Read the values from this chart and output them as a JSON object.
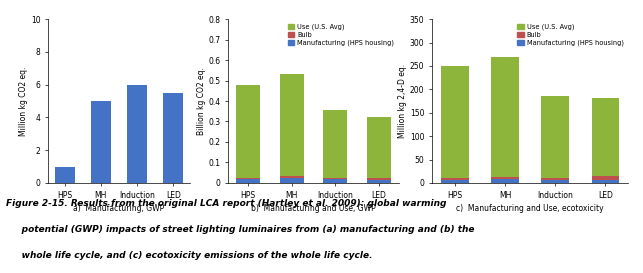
{
  "categories": [
    "HPS",
    "MH",
    "Induction",
    "LED"
  ],
  "chart_a": {
    "values": [
      1.0,
      5.0,
      6.0,
      5.5
    ],
    "color": "#4472C4",
    "ylabel": "Million kg CO2 eq.",
    "xlabel": "a)  Manufacturing, GWP",
    "ylim": [
      0,
      10
    ],
    "yticks": [
      0,
      2,
      4,
      6,
      8,
      10
    ]
  },
  "chart_b": {
    "use": [
      0.452,
      0.502,
      0.328,
      0.3
    ],
    "bulb": [
      0.008,
      0.01,
      0.008,
      0.007
    ],
    "manufacturing": [
      0.018,
      0.022,
      0.018,
      0.016
    ],
    "colors": {
      "use": "#8DB53C",
      "bulb": "#C0504D",
      "manufacturing": "#4472C4"
    },
    "ylabel": "Billion kg CO2 eq.",
    "xlabel": "b)  Manufacturing and Use, GWP",
    "ylim": [
      0,
      0.8
    ],
    "yticks": [
      0,
      0.1,
      0.2,
      0.3,
      0.4,
      0.5,
      0.6,
      0.7,
      0.8
    ],
    "legend": [
      "Use (U.S. Avg)",
      "Bulb",
      "Manufacturing (HPS housing)"
    ]
  },
  "chart_c": {
    "use": [
      238,
      255,
      175,
      167
    ],
    "bulb": [
      4,
      4,
      4,
      8
    ],
    "manufacturing": [
      7,
      9,
      7,
      7
    ],
    "colors": {
      "use": "#8DB53C",
      "bulb": "#C0504D",
      "manufacturing": "#4472C4"
    },
    "ylabel": "Million kg 2,4-D eq.",
    "xlabel": "c)  Manufacturing and Use, ecotoxicity",
    "ylim": [
      0,
      350
    ],
    "yticks": [
      0,
      50,
      100,
      150,
      200,
      250,
      300,
      350
    ],
    "legend": [
      "Use (U.S. Avg)",
      "Bulb",
      "Manufacturing (HPS housing)"
    ]
  },
  "caption_line1": "Figure 2-15. Results from the original LCA report (Hartley et al. 2009): global warming",
  "caption_line2": "     potential (GWP) impacts of street lighting luminaires from (a) manufacturing and (b) the",
  "caption_line3": "     whole life cycle, and (c) ecotoxicity emissions of the whole life cycle.",
  "bg_color": "#FFFFFF",
  "bar_width": 0.55
}
